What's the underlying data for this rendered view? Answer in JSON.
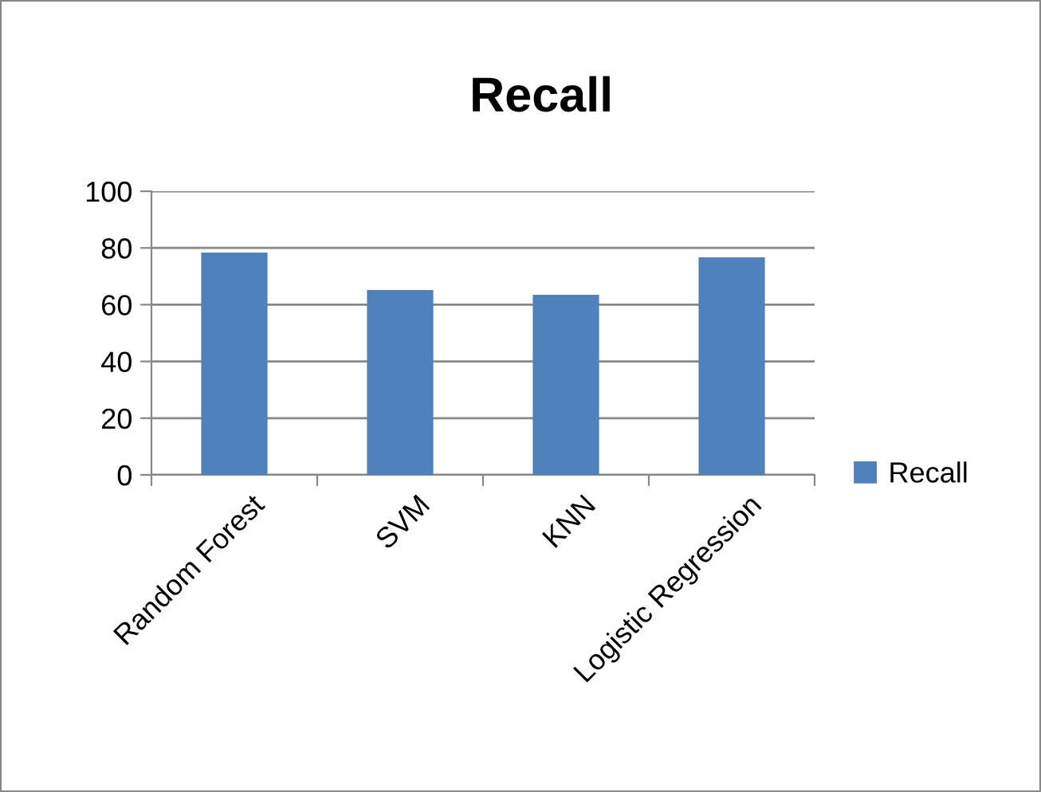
{
  "chart_data": {
    "type": "bar",
    "title": "Recall",
    "categories": [
      "Random Forest",
      "SVM",
      "KNN",
      "Logistic Regression"
    ],
    "series": [
      {
        "name": "Recall",
        "color": "#4f81bd",
        "values": [
          78.4,
          65.2,
          63.5,
          76.7
        ]
      }
    ],
    "ylim": [
      0,
      100
    ],
    "yticks": [
      0,
      20,
      40,
      60,
      80,
      100
    ],
    "grid": "y",
    "legend": "right"
  }
}
